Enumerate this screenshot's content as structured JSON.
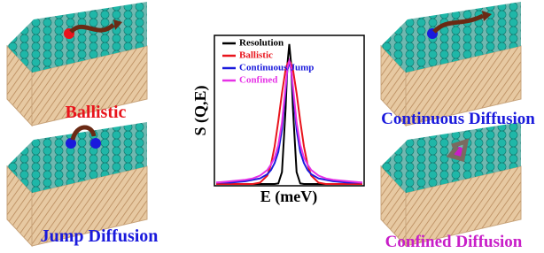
{
  "panels": [
    {
      "label": "Ballistic",
      "color": "#e8141c"
    },
    {
      "label": "Jump Diffusion",
      "color": "#1a1adc"
    },
    {
      "label": "Continuous Diffusion",
      "color": "#1a1adc"
    },
    {
      "label": "Confined Diffusion",
      "color": "#c81ec8"
    }
  ],
  "chart_data": {
    "type": "line",
    "xlabel": "E (meV)",
    "ylabel": "S (Q,E)",
    "x": [
      -10,
      -8,
      -6,
      -5,
      -4,
      -3,
      -2.5,
      -2,
      -1.5,
      -1,
      -0.5,
      -0.25,
      0,
      0.25,
      0.5,
      1,
      1.5,
      2,
      2.5,
      3,
      4,
      5,
      6,
      8,
      10
    ],
    "xlim": [
      -10,
      10
    ],
    "ylim": [
      0,
      1.05
    ],
    "series": [
      {
        "name": "Resolution",
        "color": "#000000",
        "values": [
          0,
          0,
          0,
          0,
          0,
          0,
          0,
          0,
          0.004,
          0.085,
          0.54,
          0.86,
          1,
          0.86,
          0.54,
          0.085,
          0.004,
          0,
          0,
          0,
          0,
          0,
          0,
          0,
          0
        ]
      },
      {
        "name": "Ballistic",
        "color": "#e8141c",
        "values": [
          0,
          0,
          0,
          0,
          0.01,
          0.06,
          0.14,
          0.27,
          0.45,
          0.65,
          0.82,
          0.86,
          0.88,
          0.86,
          0.82,
          0.65,
          0.45,
          0.27,
          0.14,
          0.06,
          0.01,
          0,
          0,
          0,
          0
        ]
      },
      {
        "name": "Continuous/Jump",
        "color": "#1a1adc",
        "values": [
          0.01,
          0.01,
          0.02,
          0.03,
          0.04,
          0.07,
          0.1,
          0.15,
          0.23,
          0.39,
          0.67,
          0.82,
          0.88,
          0.82,
          0.67,
          0.39,
          0.23,
          0.15,
          0.1,
          0.07,
          0.04,
          0.03,
          0.02,
          0.01,
          0.01
        ]
      },
      {
        "name": "Confined",
        "color": "#e632e6",
        "values": [
          0.01,
          0.02,
          0.03,
          0.04,
          0.06,
          0.1,
          0.14,
          0.19,
          0.28,
          0.44,
          0.7,
          0.83,
          0.88,
          0.83,
          0.7,
          0.44,
          0.28,
          0.19,
          0.14,
          0.1,
          0.06,
          0.04,
          0.03,
          0.02,
          0.01
        ]
      }
    ]
  }
}
